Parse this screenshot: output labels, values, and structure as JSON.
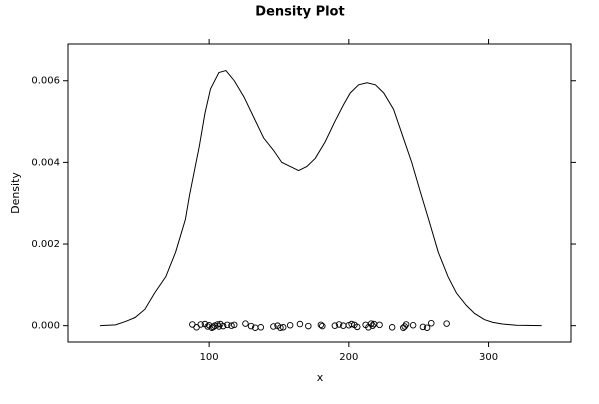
{
  "chart_data": {
    "type": "line",
    "title": "Density Plot",
    "xlabel": "x",
    "ylabel": "Density",
    "xlim": [
      -1,
      359
    ],
    "ylim": [
      -0.0004,
      0.0069
    ],
    "xticks": [
      100,
      200,
      300
    ],
    "yticks": [
      {
        "value": 0,
        "label": "0.000"
      },
      {
        "value": 0.002,
        "label": "0.002"
      },
      {
        "value": 0.004,
        "label": "0.004"
      },
      {
        "value": 0.006,
        "label": "0.006"
      }
    ],
    "series": [
      {
        "type": "line",
        "color": "#000000",
        "x": [
          22,
          33,
          40,
          47,
          54,
          61,
          69,
          76,
          83,
          86,
          93,
          97,
          101,
          107,
          112,
          118,
          125,
          132,
          139,
          146,
          152,
          158,
          164,
          170,
          176,
          183,
          190,
          196,
          201,
          207,
          213,
          219,
          225,
          232,
          238,
          245,
          251,
          258,
          264,
          271,
          277,
          284,
          290,
          297,
          303,
          310,
          320,
          338
        ],
        "values": [
          0.0,
          2e-05,
          0.0001,
          0.0002,
          0.0004,
          0.0008,
          0.0012,
          0.0018,
          0.0026,
          0.0032,
          0.0044,
          0.0052,
          0.0058,
          0.0062,
          0.00625,
          0.006,
          0.0056,
          0.0051,
          0.0046,
          0.0043,
          0.004,
          0.0039,
          0.0038,
          0.0039,
          0.0041,
          0.0045,
          0.005,
          0.0054,
          0.0057,
          0.0059,
          0.00595,
          0.0059,
          0.0057,
          0.0053,
          0.0047,
          0.004,
          0.0033,
          0.0025,
          0.0018,
          0.0012,
          0.0008,
          0.0005,
          0.0003,
          0.00015,
          8e-05,
          4e-05,
          1e-05,
          0.0
        ]
      },
      {
        "type": "scatter",
        "color": "#000000",
        "x": [
          88,
          91,
          94,
          97,
          99,
          100,
          102,
          103,
          104,
          106,
          107,
          108,
          110,
          113,
          116,
          118,
          126,
          130,
          133,
          137,
          146,
          149,
          151,
          153,
          158,
          165,
          171,
          180,
          181,
          190,
          193,
          196,
          200,
          202,
          204,
          206,
          212,
          214,
          216,
          217,
          218,
          222,
          231,
          239,
          240,
          241,
          246,
          253,
          256,
          259,
          270
        ],
        "values": [
          3e-05,
          -4e-05,
          3e-05,
          4e-05,
          -2e-05,
          1e-05,
          -5e-05,
          -3e-05,
          0.0,
          3e-05,
          -2e-05,
          4e-05,
          -1e-05,
          2e-05,
          0.0,
          2e-05,
          5e-05,
          -1e-05,
          -5e-05,
          -4e-05,
          -2e-05,
          0.0,
          -5e-05,
          -4e-05,
          1e-05,
          4e-05,
          -1e-05,
          2e-05,
          -1e-05,
          0.0,
          3e-05,
          0.0,
          1e-05,
          4e-05,
          2e-05,
          -3e-05,
          2e-05,
          -4e-05,
          5e-05,
          0.0,
          4e-05,
          2e-05,
          -4e-05,
          -5e-05,
          -2e-05,
          3e-05,
          1e-05,
          -3e-05,
          -5e-05,
          6e-05,
          5e-05
        ]
      }
    ]
  }
}
